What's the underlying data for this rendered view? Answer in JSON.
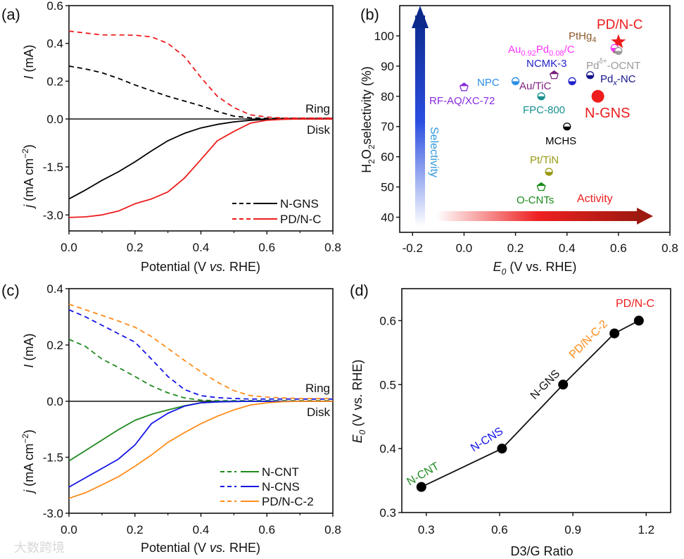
{
  "panel_labels": [
    "(a)",
    "(b)",
    "(c)",
    "(d)"
  ],
  "watermark": "大数跨境",
  "chart_data": [
    {
      "panel": "(a)",
      "type": "line",
      "xlabel": {
        "pre": "Potential (V ",
        "italic": "vs.",
        "post": " RHE)"
      },
      "ylabel_ring": {
        "italic": "I",
        "rest": " (mA)"
      },
      "ylabel_disk": {
        "italic": "j",
        "rest": " (mA cm",
        "sup": "−2",
        "close": ")"
      },
      "ring_label": "Ring",
      "disk_label": "Disk",
      "xlim": [
        0,
        0.8
      ],
      "ring_ylim": [
        0,
        0.6
      ],
      "disk_ylim": [
        -3.5,
        0
      ],
      "xticks": [
        "0.0",
        "0.2",
        "0.4",
        "0.6",
        "0.8"
      ],
      "ring_yticks": [
        "0.6",
        "0.4",
        "0.2",
        "0.0"
      ],
      "disk_yticks": [
        "-1.5",
        "-3.0"
      ],
      "x": [
        0,
        0.05,
        0.1,
        0.15,
        0.2,
        0.25,
        0.3,
        0.35,
        0.4,
        0.45,
        0.5,
        0.55,
        0.6,
        0.65,
        0.7,
        0.75,
        0.8
      ],
      "series": [
        {
          "name": "N-GNS",
          "color": "#000000",
          "ring": [
            0.28,
            0.265,
            0.245,
            0.215,
            0.18,
            0.15,
            0.12,
            0.095,
            0.07,
            0.04,
            0.015,
            0.006,
            0.003,
            0.003,
            0.003,
            0.003,
            0.003
          ],
          "disk": [
            -2.5,
            -2.22,
            -1.92,
            -1.65,
            -1.34,
            -1.0,
            -0.68,
            -0.45,
            -0.28,
            -0.17,
            -0.09,
            -0.04,
            -0.015,
            -0.005,
            0,
            0,
            0
          ]
        },
        {
          "name": "PD/N-C",
          "color": "#ee1c1c",
          "ring": [
            0.465,
            0.455,
            0.445,
            0.445,
            0.443,
            0.435,
            0.4,
            0.33,
            0.22,
            0.12,
            0.06,
            0.022,
            0.01,
            0.005,
            0.005,
            0.005,
            0.005
          ],
          "disk": [
            -3.08,
            -3.06,
            -3.0,
            -2.88,
            -2.65,
            -2.5,
            -2.28,
            -1.85,
            -1.27,
            -0.68,
            -0.39,
            -0.13,
            -0.04,
            -0.01,
            0,
            0,
            0
          ]
        }
      ],
      "legend_position": "bottom-right"
    },
    {
      "panel": "(b)",
      "type": "scatter",
      "xlabel": {
        "main": "E",
        "sub": "0",
        "rest": " (V vs. RHE)"
      },
      "ylabel": {
        "h": "H",
        "s1": "2",
        "o": "O",
        "s2": "2",
        "rest": "selectivity (%)"
      },
      "xlim": [
        -0.25,
        0.8
      ],
      "ylim": [
        35,
        110
      ],
      "xticks": [
        -0.2,
        0.0,
        0.2,
        0.4,
        0.6,
        0.8
      ],
      "xtick_labels": [
        "-0.2",
        "0.0",
        "0.2",
        "0.4",
        "0.6",
        "0.8"
      ],
      "yticks": [
        40,
        50,
        60,
        70,
        80,
        90,
        100
      ],
      "ytick_labels": [
        "40",
        "50",
        "60",
        "70",
        "80",
        "90",
        "100"
      ],
      "arrow_labels": {
        "selectivity": "Selectivity",
        "activity": "Activity"
      },
      "points": [
        {
          "name": "PD/N-C",
          "x": 0.6,
          "y": 98,
          "marker": "star",
          "color": "#ee1c1c"
        },
        {
          "name": "PtHg4",
          "x": 0.59,
          "y": 95.5,
          "marker": "half-circle",
          "color": "#8b5a2b"
        },
        {
          "name": "Au0.92Pd0.08/C",
          "x": 0.585,
          "y": 96,
          "marker": "half-circle",
          "color": "#ff33ff"
        },
        {
          "name": "Pdδ+-OCNT",
          "x": 0.6,
          "y": 95,
          "marker": "half-circle",
          "color": "#9a9a9a"
        },
        {
          "name": "Au/TiC",
          "x": 0.35,
          "y": 87,
          "marker": "pentagon",
          "color": "#7b1f7b"
        },
        {
          "name": "NCMK-3",
          "x": 0.42,
          "y": 85,
          "marker": "half-circle",
          "color": "#2222cc"
        },
        {
          "name": "Pdx-NC",
          "x": 0.49,
          "y": 87,
          "marker": "half-circle",
          "color": "#14148c"
        },
        {
          "name": "NPC",
          "x": 0.2,
          "y": 85,
          "marker": "half-circle",
          "color": "#2b8fe8"
        },
        {
          "name": "RF-AQ/XC-72",
          "x": 0.0,
          "y": 83,
          "marker": "pentagon",
          "color": "#8a2be2"
        },
        {
          "name": "FPC-800",
          "x": 0.3,
          "y": 80,
          "marker": "half-circle",
          "color": "#1a9090"
        },
        {
          "name": "N-GNS",
          "x": 0.52,
          "y": 80,
          "marker": "big-circle",
          "color": "#ee1c1c"
        },
        {
          "name": "MCHS",
          "x": 0.4,
          "y": 70,
          "marker": "half-circle",
          "color": "#000000"
        },
        {
          "name": "Pt/TiN",
          "x": 0.33,
          "y": 55,
          "marker": "half-circle",
          "color": "#9a9a14"
        },
        {
          "name": "O-CNTs",
          "x": 0.3,
          "y": 50,
          "marker": "pentagon",
          "color": "#1a8a1a"
        }
      ],
      "point_labels": {
        "pdnc": "PD/N-C",
        "pthg": {
          "main": "PtHg",
          "sub": "4"
        },
        "aupd": {
          "a": "Au",
          "s1": "0.92",
          "b": "Pd",
          "s2": "0.08",
          "c": "/C"
        },
        "pdocnt": {
          "a": "Pd",
          "sup": "δ+",
          "b": "-OCNT"
        },
        "ncmk": "NCMK-3",
        "npc": "NPC",
        "autic": "Au/TiC",
        "pdxnc": {
          "a": "Pd",
          "sub": "x",
          "b": "-NC"
        },
        "rfaq": "RF-AQ/XC-72",
        "fpc": "FPC-800",
        "ngns": "N-GNS",
        "mchs": "MCHS",
        "pttin": "Pt/TiN",
        "ocnts": "O-CNTs"
      }
    },
    {
      "panel": "(c)",
      "type": "line",
      "xlabel": {
        "pre": "Potential (V ",
        "italic": "vs.",
        "post": " RHE)"
      },
      "ylabel_ring": {
        "italic": "I",
        "rest": " (mA)"
      },
      "ylabel_disk": {
        "italic": "j",
        "rest": " (mA cm",
        "sup": "−2",
        "close": ")"
      },
      "ring_label": "Ring",
      "disk_label": "Disk",
      "xlim": [
        0,
        0.8
      ],
      "ring_ylim": [
        0,
        0.4
      ],
      "disk_ylim": [
        -3.0,
        0
      ],
      "xticks": [
        "0.0",
        "0.2",
        "0.4",
        "0.6",
        "0.8"
      ],
      "ring_yticks": [
        "0.4",
        "0.2",
        "0.0"
      ],
      "disk_yticks": [
        "-1.5",
        "-3.0"
      ],
      "x": [
        0,
        0.05,
        0.1,
        0.15,
        0.2,
        0.25,
        0.3,
        0.35,
        0.4,
        0.45,
        0.5,
        0.55,
        0.6,
        0.65,
        0.7,
        0.75,
        0.8
      ],
      "series": [
        {
          "name": "N-CNT",
          "color": "#1e8a1e",
          "ring": [
            0.22,
            0.195,
            0.15,
            0.12,
            0.088,
            0.055,
            0.03,
            0.012,
            0.004,
            0.002,
            0.002,
            0.002,
            0.002,
            0.002,
            0.002,
            0.002,
            0.002
          ],
          "disk": [
            -1.6,
            -1.32,
            -1.04,
            -0.76,
            -0.51,
            -0.35,
            -0.23,
            -0.12,
            -0.04,
            -0.015,
            0,
            0,
            0,
            0,
            0,
            0,
            0
          ]
        },
        {
          "name": "N-CNS",
          "color": "#1414e6",
          "ring": [
            0.325,
            0.3,
            0.27,
            0.24,
            0.21,
            0.15,
            0.088,
            0.042,
            0.02,
            0.013,
            0.01,
            0.008,
            0.008,
            0.008,
            0.008,
            0.008,
            0.008
          ],
          "disk": [
            -2.3,
            -2.05,
            -1.8,
            -1.55,
            -1.17,
            -0.6,
            -0.32,
            -0.13,
            -0.04,
            -0.015,
            -0.005,
            0,
            0,
            0,
            0,
            0,
            0
          ]
        },
        {
          "name": "PD/N-C-2",
          "color": "#ff8c1a",
          "ring": [
            0.345,
            0.325,
            0.305,
            0.285,
            0.263,
            0.23,
            0.188,
            0.145,
            0.105,
            0.068,
            0.038,
            0.02,
            0.015,
            0.012,
            0.01,
            0.01,
            0.01
          ],
          "disk": [
            -2.6,
            -2.45,
            -2.24,
            -2.02,
            -1.74,
            -1.44,
            -1.1,
            -0.84,
            -0.6,
            -0.4,
            -0.23,
            -0.1,
            -0.04,
            -0.01,
            0,
            0,
            0
          ]
        }
      ],
      "legend_position": "bottom-right"
    },
    {
      "panel": "(d)",
      "type": "line",
      "xlabel": "D3/G Ratio",
      "ylabel": {
        "main": "E",
        "sub": "0",
        "rest": " (V vs. RHE)"
      },
      "xlim": [
        0.2,
        1.3
      ],
      "ylim": [
        0.3,
        0.65
      ],
      "xticks": [
        0.3,
        0.6,
        0.9,
        1.2
      ],
      "xtick_labels": [
        "0.3",
        "0.6",
        "0.9",
        "1.2"
      ],
      "yticks": [
        0.3,
        0.4,
        0.5,
        0.6
      ],
      "ytick_labels": [
        "0.3",
        "0.4",
        "0.5",
        "0.6"
      ],
      "points": [
        {
          "name": "N-CNT",
          "x": 0.28,
          "y": 0.34,
          "color": "#1e8a1e"
        },
        {
          "name": "N-CNS",
          "x": 0.61,
          "y": 0.4,
          "color": "#1414e6"
        },
        {
          "name": "N-GNS",
          "x": 0.86,
          "y": 0.5,
          "color": "#111111"
        },
        {
          "name": "PD/N-C-2",
          "x": 1.07,
          "y": 0.58,
          "color": "#ff8c1a"
        },
        {
          "name": "PD/N-C",
          "x": 1.17,
          "y": 0.6,
          "color": "#ee1c1c"
        }
      ]
    }
  ]
}
